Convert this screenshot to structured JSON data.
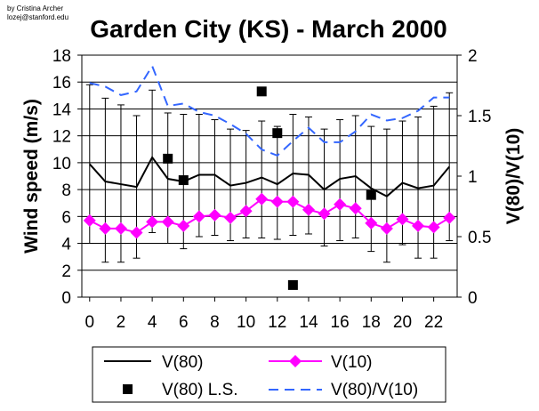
{
  "credit": [
    "by Cristina Archer",
    "lozej@stanford.edu"
  ],
  "chart_data": {
    "type": "line",
    "title": "Garden City (KS) - March 2000",
    "ylabel": "Wind speed (m/s)",
    "y2label": "V(80)/V(10)",
    "xlabel": "",
    "ylim": [
      0,
      18
    ],
    "y2lim": [
      0,
      2
    ],
    "yticks": [
      0,
      2,
      4,
      6,
      8,
      10,
      12,
      14,
      16,
      18
    ],
    "y2ticks": [
      0,
      0.5,
      1,
      1.5,
      2
    ],
    "xlim": [
      -0.5,
      23.5
    ],
    "xtick_values": [
      0,
      2,
      4,
      6,
      8,
      10,
      12,
      14,
      16,
      18,
      20,
      22
    ],
    "xticks": [
      "0",
      "2",
      "4",
      "6",
      "8",
      "10",
      "12",
      "14",
      "16",
      "18",
      "20",
      "22"
    ],
    "y2tick_labels": [
      "0",
      "0.5",
      "1",
      "1.5",
      "2"
    ],
    "grid": "horizontal",
    "x": [
      0,
      1,
      2,
      3,
      4,
      5,
      6,
      7,
      8,
      9,
      10,
      11,
      12,
      13,
      14,
      15,
      16,
      17,
      18,
      19,
      20,
      21,
      22,
      23
    ],
    "series": [
      {
        "name": "V(80)",
        "axis": "left",
        "style": "line",
        "color": "#000000",
        "values": [
          9.9,
          8.6,
          8.4,
          8.2,
          10.4,
          8.8,
          8.6,
          9.1,
          9.1,
          8.3,
          8.5,
          8.9,
          8.4,
          9.2,
          9.1,
          8.0,
          8.8,
          9.0,
          8.1,
          7.5,
          8.5,
          8.1,
          8.3,
          9.7
        ],
        "error_high": [
          15.8,
          14.8,
          14.3,
          13.5,
          15.4,
          13.7,
          13.6,
          13.6,
          13.2,
          12.5,
          12.4,
          13.1,
          12.7,
          13.6,
          13.4,
          12.5,
          13.2,
          13.5,
          12.7,
          12.5,
          13.1,
          13.4,
          14.2,
          15.2
        ],
        "error_low": [
          4.0,
          2.6,
          2.6,
          2.9,
          4.8,
          4.0,
          3.6,
          4.5,
          4.6,
          4.2,
          4.4,
          4.4,
          4.3,
          4.6,
          4.7,
          3.8,
          4.2,
          4.4,
          3.4,
          2.6,
          3.9,
          2.9,
          2.9,
          4.2
        ]
      },
      {
        "name": "V(10)",
        "axis": "left",
        "style": "line-diamond",
        "color": "#ff00ff",
        "values": [
          5.7,
          5.1,
          5.1,
          4.8,
          5.6,
          5.6,
          5.3,
          6.0,
          6.1,
          5.9,
          6.4,
          7.3,
          7.1,
          7.1,
          6.5,
          6.2,
          6.9,
          6.6,
          5.5,
          5.1,
          5.8,
          5.3,
          5.2,
          5.9
        ]
      },
      {
        "name": "V(80) L.S.",
        "axis": "left",
        "style": "marker-square",
        "color": "#000000",
        "points": [
          {
            "x": 5,
            "y": 10.3
          },
          {
            "x": 6,
            "y": 8.7
          },
          {
            "x": 11,
            "y": 15.3
          },
          {
            "x": 12,
            "y": 12.2
          },
          {
            "x": 13,
            "y": 0.9
          },
          {
            "x": 18,
            "y": 7.6
          }
        ]
      },
      {
        "name": "V(80)/V(10)",
        "axis": "right",
        "style": "dashed",
        "color": "#3366ff",
        "values": [
          1.77,
          1.74,
          1.67,
          1.7,
          1.91,
          1.58,
          1.6,
          1.53,
          1.5,
          1.43,
          1.35,
          1.22,
          1.17,
          1.29,
          1.4,
          1.28,
          1.28,
          1.37,
          1.51,
          1.46,
          1.48,
          1.54,
          1.65,
          1.65
        ]
      }
    ],
    "legend": {
      "placement": "bottom",
      "entries": [
        "V(80)",
        "V(10)",
        "V(80) L.S.",
        "V(80)/V(10)"
      ]
    }
  }
}
